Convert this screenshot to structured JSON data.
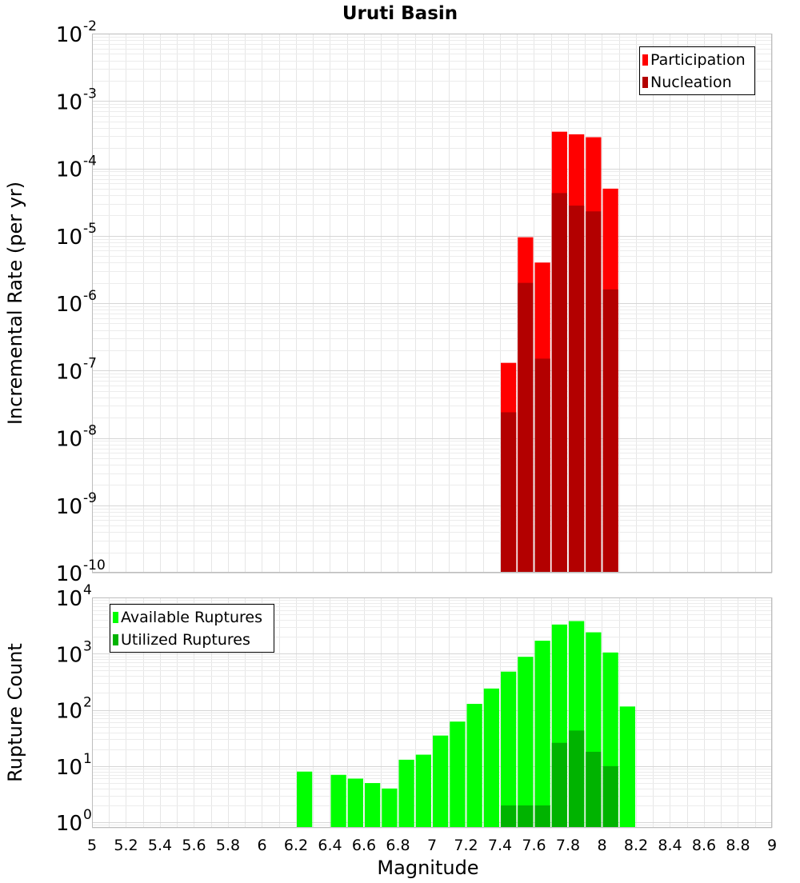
{
  "chart_data": [
    {
      "type": "bar",
      "title": "Uruti Basin",
      "xlabel": "",
      "ylabel": "Incremental Rate (per yr)",
      "y_scale": "log",
      "ylim": [
        1e-10,
        0.01
      ],
      "xlim": [
        5,
        9
      ],
      "grid": true,
      "legend_position": "top-right",
      "y_tick_labels": [
        {
          "base": "10",
          "exp": "-10",
          "value": 1e-10
        },
        {
          "base": "10",
          "exp": "-9",
          "value": 1e-09
        },
        {
          "base": "10",
          "exp": "-8",
          "value": 1e-08
        },
        {
          "base": "10",
          "exp": "-7",
          "value": 1e-07
        },
        {
          "base": "10",
          "exp": "-6",
          "value": 1e-06
        },
        {
          "base": "10",
          "exp": "-5",
          "value": 1e-05
        },
        {
          "base": "10",
          "exp": "-4",
          "value": 0.0001
        },
        {
          "base": "10",
          "exp": "-3",
          "value": 0.001
        },
        {
          "base": "10",
          "exp": "-2",
          "value": 0.01
        }
      ],
      "series": [
        {
          "name": "Participation",
          "color": "#ff0000",
          "x": [
            7.45,
            7.55,
            7.65,
            7.75,
            7.85,
            7.95,
            8.05
          ],
          "values": [
            1.3e-07,
            9.5e-06,
            4e-06,
            0.00035,
            0.00032,
            0.00029,
            5e-05
          ]
        },
        {
          "name": "Nucleation",
          "color": "#b30000",
          "x": [
            7.45,
            7.55,
            7.65,
            7.75,
            7.85,
            7.95,
            8.05
          ],
          "values": [
            2.4e-08,
            2e-06,
            1.5e-07,
            4.3e-05,
            2.8e-05,
            2.3e-05,
            1.6e-06
          ]
        }
      ]
    },
    {
      "type": "bar",
      "title": "",
      "xlabel": "Magnitude",
      "ylabel": "Rupture Count",
      "y_scale": "log",
      "ylim": [
        0.8,
        10000
      ],
      "xlim": [
        5,
        9
      ],
      "grid": true,
      "legend_position": "top-left",
      "x_ticks": [
        "5",
        "5.2",
        "5.4",
        "5.6",
        "5.8",
        "6",
        "6.2",
        "6.4",
        "6.6",
        "6.8",
        "7",
        "7.2",
        "7.4",
        "7.6",
        "7.8",
        "8",
        "8.2",
        "8.4",
        "8.6",
        "8.8",
        "9"
      ],
      "y_tick_labels": [
        {
          "base": "10",
          "exp": "0",
          "value": 1
        },
        {
          "base": "10",
          "exp": "1",
          "value": 10
        },
        {
          "base": "10",
          "exp": "2",
          "value": 100
        },
        {
          "base": "10",
          "exp": "3",
          "value": 1000
        },
        {
          "base": "10",
          "exp": "4",
          "value": 10000
        }
      ],
      "series": [
        {
          "name": "Available Ruptures",
          "color": "#00ff00",
          "x": [
            6.25,
            6.45,
            6.55,
            6.65,
            6.75,
            6.85,
            6.95,
            7.05,
            7.15,
            7.25,
            7.35,
            7.45,
            7.55,
            7.65,
            7.75,
            7.85,
            7.95,
            8.05,
            8.15
          ],
          "values": [
            8,
            7,
            6,
            5,
            4,
            13,
            16,
            35,
            62,
            128,
            240,
            480,
            880,
            1700,
            3300,
            3800,
            2400,
            1050,
            115
          ]
        },
        {
          "name": "Utilized Ruptures",
          "color": "#00b300",
          "x": [
            7.45,
            7.55,
            7.65,
            7.75,
            7.85,
            7.95,
            8.05
          ],
          "values": [
            2,
            2,
            2,
            26,
            43,
            18,
            10
          ]
        }
      ]
    }
  ]
}
